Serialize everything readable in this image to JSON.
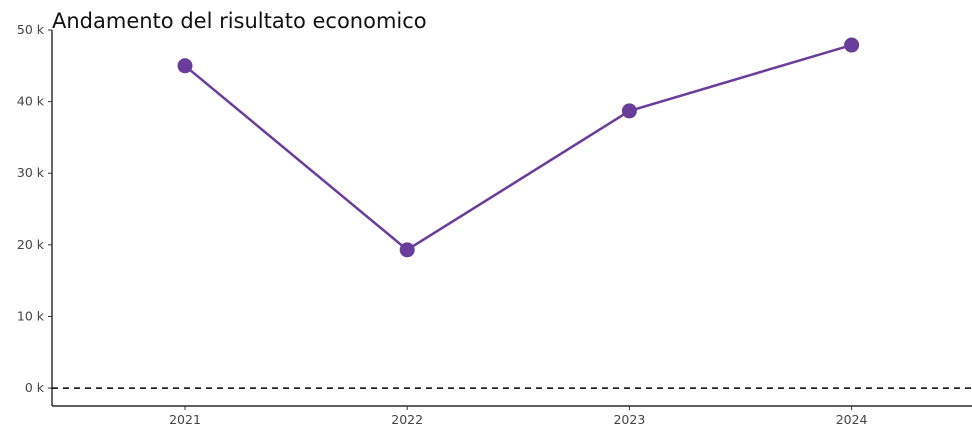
{
  "chart_data": {
    "type": "line",
    "title": "Andamento del risultato economico",
    "xlabel": "",
    "ylabel": "",
    "categories": [
      "2021",
      "2022",
      "2023",
      "2024"
    ],
    "series": [
      {
        "values": [
          45000,
          19300,
          38700,
          47900
        ],
        "color": "#6a3d9a"
      }
    ],
    "ylim": [
      -2500,
      50000
    ],
    "yticks": [
      0,
      10000,
      20000,
      30000,
      40000,
      50000
    ],
    "ytick_labels": [
      "0 k",
      "10 k",
      "20 k",
      "30 k",
      "40 k",
      "50 k"
    ],
    "reference_line": {
      "y": 0,
      "style": "dashed"
    },
    "grid": false,
    "legend": "none"
  }
}
